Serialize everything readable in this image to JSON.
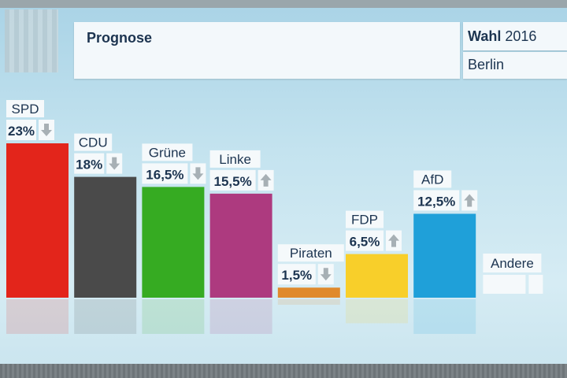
{
  "header": {
    "title": "Prognose",
    "election_bold": "Wahl",
    "election_year": "2016",
    "region": "Berlin"
  },
  "chart_data": {
    "type": "bar",
    "categories": [
      "SPD",
      "CDU",
      "Grüne",
      "Linke",
      "Piraten",
      "FDP",
      "AfD",
      "Andere"
    ],
    "values": [
      23,
      18,
      16.5,
      15.5,
      1.5,
      6.5,
      12.5,
      null
    ],
    "value_labels": [
      "23%",
      "18%",
      "16,5%",
      "15,5%",
      "1,5%",
      "6,5%",
      "12,5%",
      ""
    ],
    "trend": [
      "down",
      "down",
      "down",
      "up",
      "down",
      "up",
      "up",
      ""
    ],
    "colors": [
      "#e3251b",
      "#4a4a4a",
      "#36ab22",
      "#ad3a7f",
      "#e08a2c",
      "#f8cf2a",
      "#1fa0d9",
      "#ffffff"
    ],
    "title": "",
    "xlabel": "",
    "ylabel": "",
    "ylim": [
      0,
      23
    ]
  }
}
